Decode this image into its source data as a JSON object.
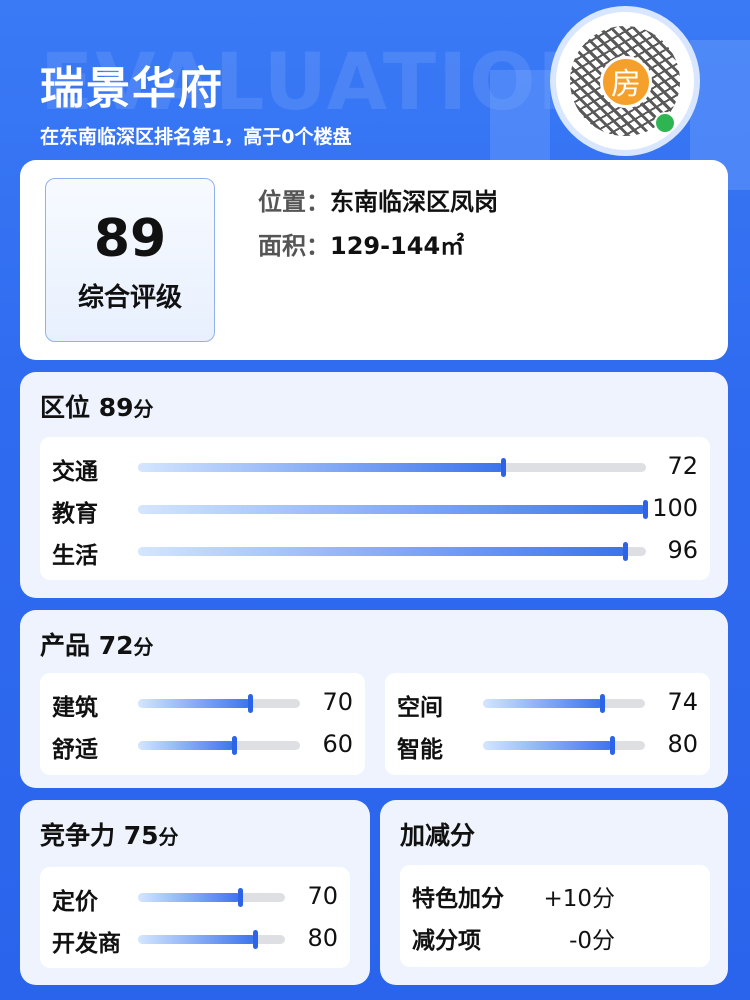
{
  "header": {
    "bg_text": "EVALUATION",
    "title": "瑞景华府",
    "subtitle": "在东南临深区排名第1，高于0个楼盘",
    "qr_logo": "房"
  },
  "summary": {
    "score": "89",
    "score_label": "综合评级",
    "location_key": "位置：",
    "location": "东南临深区凤岗",
    "area_key": "面积：",
    "area": "129-144㎡"
  },
  "sections": {
    "location": {
      "title": "区位",
      "score": "89",
      "unit": "分",
      "items": [
        {
          "label": "交通",
          "value": 72
        },
        {
          "label": "教育",
          "value": 100
        },
        {
          "label": "生活",
          "value": 96
        }
      ]
    },
    "product": {
      "title": "产品",
      "score": "72",
      "unit": "分",
      "items": [
        {
          "label": "建筑",
          "value": 70
        },
        {
          "label": "舒适",
          "value": 60
        },
        {
          "label": "空间",
          "value": 74
        },
        {
          "label": "智能",
          "value": 80
        }
      ]
    },
    "competitive": {
      "title": "竞争力",
      "score": "75",
      "unit": "分",
      "items": [
        {
          "label": "定价",
          "value": 70
        },
        {
          "label": "开发商",
          "value": 80
        }
      ]
    },
    "adjust": {
      "title": "加减分",
      "items": [
        {
          "label": "特色加分",
          "value": "+10分"
        },
        {
          "label": "减分项",
          "value": "-0分"
        }
      ]
    }
  },
  "colors": {
    "background": "#2f6bf0",
    "bar": "#2d63e6",
    "track": "#dedfe3",
    "qr_logo": "#f5a02a"
  }
}
